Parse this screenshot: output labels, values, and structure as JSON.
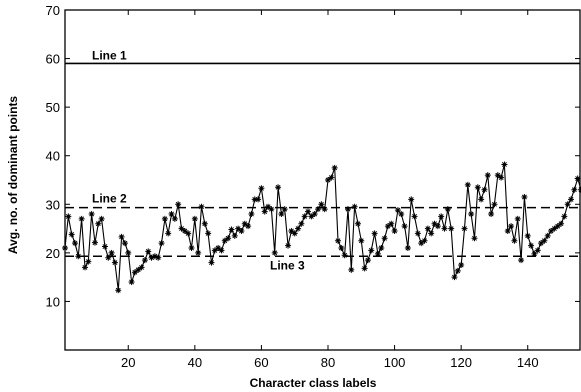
{
  "chart_data": {
    "type": "line",
    "title": "",
    "xlabel": "Character class labels",
    "ylabel": "Avg. no. of dominant points",
    "xlim": [
      1,
      156
    ],
    "ylim": [
      0,
      70
    ],
    "xticks": [
      20,
      40,
      60,
      80,
      100,
      120,
      140
    ],
    "yticks": [
      10,
      20,
      30,
      40,
      50,
      60,
      70
    ],
    "grid": false,
    "series": [
      {
        "marker": "asterisk",
        "style": "solid",
        "x": [
          1,
          2,
          3,
          4,
          5,
          6,
          7,
          8,
          9,
          10,
          11,
          12,
          13,
          14,
          15,
          16,
          17,
          18,
          19,
          20,
          21,
          22,
          23,
          24,
          25,
          26,
          27,
          28,
          29,
          30,
          31,
          32,
          33,
          34,
          35,
          36,
          37,
          38,
          39,
          40,
          41,
          42,
          43,
          44,
          45,
          46,
          47,
          48,
          49,
          50,
          51,
          52,
          53,
          54,
          55,
          56,
          57,
          58,
          59,
          60,
          61,
          62,
          63,
          64,
          65,
          66,
          67,
          68,
          69,
          70,
          71,
          72,
          73,
          74,
          75,
          76,
          77,
          78,
          79,
          80,
          81,
          82,
          83,
          84,
          85,
          86,
          87,
          88,
          89,
          90,
          91,
          92,
          93,
          94,
          95,
          96,
          97,
          98,
          99,
          100,
          101,
          102,
          103,
          104,
          105,
          106,
          107,
          108,
          109,
          110,
          111,
          112,
          113,
          114,
          115,
          116,
          117,
          118,
          119,
          120,
          121,
          122,
          123,
          124,
          125,
          126,
          127,
          128,
          129,
          130,
          131,
          132,
          133,
          134,
          135,
          136,
          137,
          138,
          139,
          140,
          141,
          142,
          143,
          144,
          145,
          146,
          147,
          148,
          149,
          150,
          151,
          152,
          153,
          154,
          155,
          156
        ],
        "y": [
          21,
          27.5,
          23.8,
          22,
          19.3,
          27,
          17,
          18.2,
          28,
          22.1,
          26,
          27,
          21.3,
          19,
          20,
          18,
          12.3,
          23.3,
          22,
          20,
          14,
          16,
          16.5,
          17,
          18.5,
          20.3,
          19,
          19.3,
          19,
          22,
          27,
          24,
          28,
          27,
          30,
          25,
          24.5,
          24,
          21,
          27,
          20,
          29.5,
          26,
          24,
          18,
          20.5,
          21,
          20.5,
          22.5,
          23,
          24.8,
          23.5,
          25,
          24.5,
          26,
          25.5,
          28,
          31,
          31,
          33.3,
          28.5,
          29.5,
          29,
          20,
          33.5,
          28,
          29,
          21.5,
          24.5,
          24,
          25,
          26,
          27.5,
          28.5,
          27.5,
          28,
          29,
          30,
          29,
          35,
          35.5,
          37.5,
          22.5,
          21,
          19.5,
          29,
          16.5,
          29.5,
          26,
          22.5,
          16.8,
          18.5,
          20.5,
          24,
          19.8,
          21,
          23,
          25.5,
          26,
          24.5,
          28.8,
          28,
          25.5,
          21,
          31,
          27.5,
          24,
          22,
          22.5,
          25,
          24,
          26,
          25.5,
          27.5,
          25,
          29,
          25,
          15,
          16.3,
          17.5,
          25,
          34,
          28,
          23,
          33.5,
          31,
          33,
          36,
          28,
          30,
          36,
          35.5,
          38.2,
          24.5,
          25.5,
          22.5,
          27,
          18.5,
          31.5,
          23.5,
          21.5,
          19.8,
          20.5,
          22,
          22.5,
          23.5,
          24.5,
          25,
          25.5,
          26,
          27.5,
          30,
          31,
          33,
          35.3,
          33
        ]
      }
    ],
    "reference_lines": [
      {
        "label": "Line 1",
        "y": 59,
        "style": "solid"
      },
      {
        "label": "Line 2",
        "y": 29.3,
        "style": "dashed"
      },
      {
        "label": "Line 3",
        "y": 19.3,
        "style": "dashed"
      }
    ]
  }
}
